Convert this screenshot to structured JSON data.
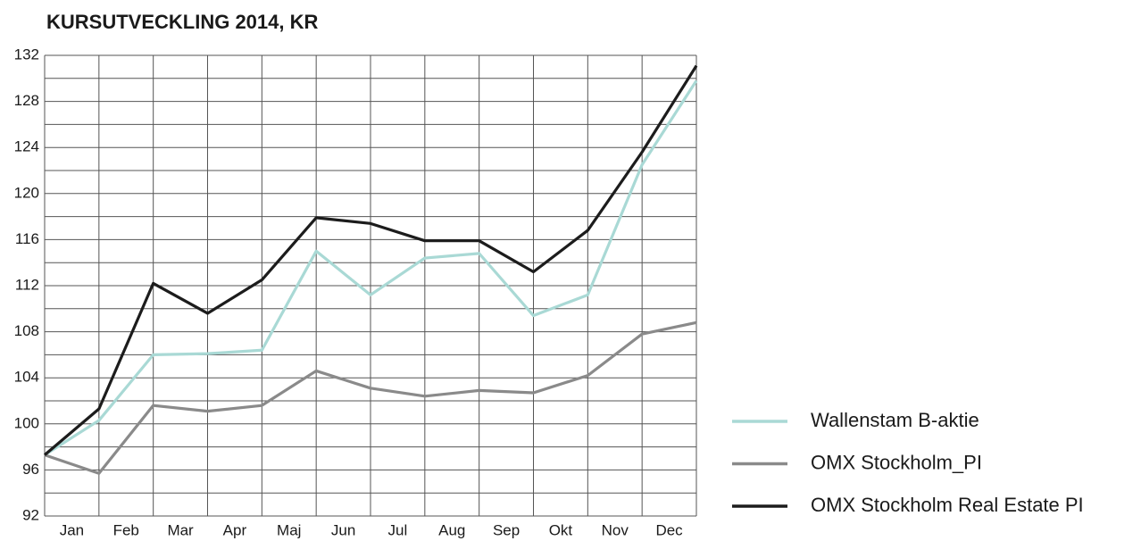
{
  "chart_data": {
    "type": "line",
    "title": "KURSUTVECKLING 2014, KR",
    "x": [
      0,
      1,
      2,
      3,
      4,
      5,
      6,
      7,
      8,
      9,
      10,
      11,
      12
    ],
    "xlim": [
      0,
      12
    ],
    "xticks": [
      {
        "value": 0.5,
        "label": "Jan"
      },
      {
        "value": 1.5,
        "label": "Feb"
      },
      {
        "value": 2.5,
        "label": "Mar"
      },
      {
        "value": 3.5,
        "label": "Apr"
      },
      {
        "value": 4.5,
        "label": "Maj"
      },
      {
        "value": 5.5,
        "label": "Jun"
      },
      {
        "value": 6.5,
        "label": "Jul"
      },
      {
        "value": 7.5,
        "label": "Aug"
      },
      {
        "value": 8.5,
        "label": "Sep"
      },
      {
        "value": 9.5,
        "label": "Okt"
      },
      {
        "value": 10.5,
        "label": "Nov"
      },
      {
        "value": 11.5,
        "label": "Dec"
      }
    ],
    "ylim": [
      92,
      132
    ],
    "yticks": [
      92,
      96,
      100,
      104,
      108,
      112,
      116,
      120,
      124,
      128,
      132
    ],
    "yminorticks": [
      94,
      98,
      102,
      106,
      110,
      114,
      118,
      122,
      126,
      130
    ],
    "grid": true,
    "series": [
      {
        "name": "Wallenstam B-aktie",
        "color": "#a9d9d5",
        "values": [
          97.3,
          100.3,
          106.0,
          106.1,
          106.4,
          115.0,
          111.2,
          114.4,
          114.8,
          109.4,
          111.2,
          122.5,
          129.8
        ]
      },
      {
        "name": "OMX Stockholm_PI",
        "color": "#8a8a8a",
        "values": [
          97.3,
          95.7,
          101.6,
          101.1,
          101.6,
          104.6,
          103.1,
          102.4,
          102.9,
          102.7,
          104.2,
          107.8,
          108.8
        ]
      },
      {
        "name": "OMX Stockholm Real Estate PI",
        "color": "#1c1c1c",
        "values": [
          97.3,
          101.3,
          112.2,
          109.6,
          112.5,
          117.9,
          117.4,
          115.9,
          115.9,
          113.2,
          116.8,
          123.6,
          131.1
        ]
      }
    ]
  }
}
